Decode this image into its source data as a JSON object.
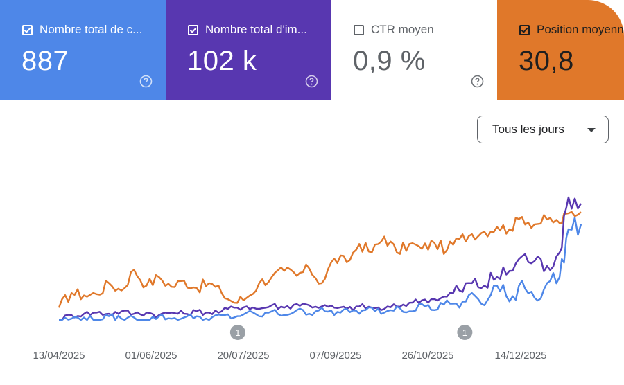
{
  "metrics": [
    {
      "label": "Nombre total de c...",
      "value": "887",
      "checked": true,
      "color": "#4e87e8"
    },
    {
      "label": "Nombre total d'im...",
      "value": "102 k",
      "checked": true,
      "color": "#5837b0"
    },
    {
      "label": "CTR moyen",
      "value": "0,9 %",
      "checked": false,
      "color": "#ffffff"
    },
    {
      "label": "Position moyenne",
      "value": "30,8",
      "checked": true,
      "color": "#e0782a"
    }
  ],
  "period_select": {
    "label": "Tous les jours"
  },
  "chart_data": {
    "type": "line",
    "x_tick_labels": [
      "13/04/2025",
      "01/06/2025",
      "20/07/2025",
      "07/09/2025",
      "26/10/2025",
      "14/12/2025"
    ],
    "x_range": [
      "2025-03-29",
      "2026-01-15"
    ],
    "y_axis_visible": false,
    "grid": false,
    "legend": "none",
    "annotations": [
      {
        "text": "1",
        "date": "2025-07-07"
      },
      {
        "text": "1",
        "date": "2025-11-11"
      }
    ],
    "series": [
      {
        "name": "Position moyenne",
        "color": "#e0782a",
        "points": [
          [
            "2025-03-29",
            0.1
          ],
          [
            "2025-04-05",
            0.22
          ],
          [
            "2025-04-12",
            0.2
          ],
          [
            "2025-04-19",
            0.21
          ],
          [
            "2025-04-26",
            0.3
          ],
          [
            "2025-05-03",
            0.24
          ],
          [
            "2025-05-10",
            0.41
          ],
          [
            "2025-05-17",
            0.28
          ],
          [
            "2025-05-24",
            0.35
          ],
          [
            "2025-05-31",
            0.27
          ],
          [
            "2025-06-07",
            0.32
          ],
          [
            "2025-06-14",
            0.26
          ],
          [
            "2025-06-21",
            0.3
          ],
          [
            "2025-06-28",
            0.22
          ],
          [
            "2025-07-05",
            0.14
          ],
          [
            "2025-07-12",
            0.18
          ],
          [
            "2025-07-19",
            0.3
          ],
          [
            "2025-07-26",
            0.35
          ],
          [
            "2025-08-02",
            0.4
          ],
          [
            "2025-08-09",
            0.36
          ],
          [
            "2025-08-16",
            0.42
          ],
          [
            "2025-08-23",
            0.3
          ],
          [
            "2025-08-30",
            0.5
          ],
          [
            "2025-09-06",
            0.47
          ],
          [
            "2025-09-13",
            0.62
          ],
          [
            "2025-09-20",
            0.55
          ],
          [
            "2025-09-27",
            0.68
          ],
          [
            "2025-10-04",
            0.55
          ],
          [
            "2025-10-11",
            0.62
          ],
          [
            "2025-10-18",
            0.58
          ],
          [
            "2025-10-25",
            0.63
          ],
          [
            "2025-11-01",
            0.57
          ],
          [
            "2025-11-08",
            0.66
          ],
          [
            "2025-11-15",
            0.7
          ],
          [
            "2025-11-22",
            0.72
          ],
          [
            "2025-11-29",
            0.76
          ],
          [
            "2025-12-06",
            0.74
          ],
          [
            "2025-12-13",
            0.84
          ],
          [
            "2025-12-20",
            0.78
          ],
          [
            "2025-12-27",
            0.82
          ],
          [
            "2026-01-03",
            0.79
          ],
          [
            "2026-01-08",
            0.87
          ],
          [
            "2026-01-15",
            0.88
          ]
        ]
      },
      {
        "name": "Nombre total d'impressions",
        "color": "#5837b0",
        "points": [
          [
            "2025-03-29",
            0.0
          ],
          [
            "2025-04-05",
            0.04
          ],
          [
            "2025-04-12",
            0.05
          ],
          [
            "2025-04-19",
            0.06
          ],
          [
            "2025-04-26",
            0.05
          ],
          [
            "2025-05-03",
            0.07
          ],
          [
            "2025-05-10",
            0.05
          ],
          [
            "2025-05-17",
            0.06
          ],
          [
            "2025-05-24",
            0.04
          ],
          [
            "2025-05-31",
            0.06
          ],
          [
            "2025-06-07",
            0.05
          ],
          [
            "2025-06-14",
            0.07
          ],
          [
            "2025-06-21",
            0.06
          ],
          [
            "2025-06-28",
            0.07
          ],
          [
            "2025-07-05",
            0.1
          ],
          [
            "2025-07-12",
            0.11
          ],
          [
            "2025-07-19",
            0.09
          ],
          [
            "2025-07-26",
            0.12
          ],
          [
            "2025-08-02",
            0.1
          ],
          [
            "2025-08-09",
            0.13
          ],
          [
            "2025-08-16",
            0.12
          ],
          [
            "2025-08-23",
            0.11
          ],
          [
            "2025-08-30",
            0.1
          ],
          [
            "2025-09-06",
            0.09
          ],
          [
            "2025-09-13",
            0.11
          ],
          [
            "2025-09-20",
            0.1
          ],
          [
            "2025-09-27",
            0.09
          ],
          [
            "2025-10-04",
            0.11
          ],
          [
            "2025-10-11",
            0.14
          ],
          [
            "2025-10-18",
            0.16
          ],
          [
            "2025-10-25",
            0.17
          ],
          [
            "2025-11-01",
            0.19
          ],
          [
            "2025-11-08",
            0.24
          ],
          [
            "2025-11-15",
            0.3
          ],
          [
            "2025-11-22",
            0.28
          ],
          [
            "2025-11-29",
            0.35
          ],
          [
            "2025-12-06",
            0.4
          ],
          [
            "2025-12-13",
            0.52
          ],
          [
            "2025-12-20",
            0.48
          ],
          [
            "2025-12-27",
            0.44
          ],
          [
            "2026-01-03",
            0.55
          ],
          [
            "2026-01-08",
            1.0
          ],
          [
            "2026-01-15",
            0.95
          ]
        ]
      },
      {
        "name": "Nombre total de clics",
        "color": "#4e87e8",
        "points": [
          [
            "2025-03-29",
            0.0
          ],
          [
            "2025-04-05",
            0.01
          ],
          [
            "2025-04-12",
            0.02
          ],
          [
            "2025-04-19",
            0.0
          ],
          [
            "2025-04-26",
            0.03
          ],
          [
            "2025-05-03",
            0.01
          ],
          [
            "2025-05-10",
            0.02
          ],
          [
            "2025-05-17",
            0.0
          ],
          [
            "2025-05-24",
            0.03
          ],
          [
            "2025-05-31",
            0.01
          ],
          [
            "2025-06-07",
            0.02
          ],
          [
            "2025-06-14",
            0.03
          ],
          [
            "2025-06-21",
            0.0
          ],
          [
            "2025-06-28",
            0.04
          ],
          [
            "2025-07-05",
            0.02
          ],
          [
            "2025-07-12",
            0.06
          ],
          [
            "2025-07-19",
            0.03
          ],
          [
            "2025-07-26",
            0.07
          ],
          [
            "2025-08-02",
            0.04
          ],
          [
            "2025-08-09",
            0.08
          ],
          [
            "2025-08-16",
            0.05
          ],
          [
            "2025-08-23",
            0.1
          ],
          [
            "2025-08-30",
            0.04
          ],
          [
            "2025-09-06",
            0.09
          ],
          [
            "2025-09-13",
            0.05
          ],
          [
            "2025-09-20",
            0.1
          ],
          [
            "2025-09-27",
            0.06
          ],
          [
            "2025-10-04",
            0.11
          ],
          [
            "2025-10-11",
            0.07
          ],
          [
            "2025-10-18",
            0.13
          ],
          [
            "2025-10-25",
            0.08
          ],
          [
            "2025-11-01",
            0.16
          ],
          [
            "2025-11-08",
            0.1
          ],
          [
            "2025-11-15",
            0.22
          ],
          [
            "2025-11-22",
            0.12
          ],
          [
            "2025-11-29",
            0.28
          ],
          [
            "2025-12-06",
            0.15
          ],
          [
            "2025-12-13",
            0.32
          ],
          [
            "2025-12-20",
            0.18
          ],
          [
            "2025-12-27",
            0.3
          ],
          [
            "2026-01-03",
            0.35
          ],
          [
            "2026-01-08",
            0.74
          ],
          [
            "2026-01-15",
            0.78
          ]
        ]
      }
    ]
  }
}
